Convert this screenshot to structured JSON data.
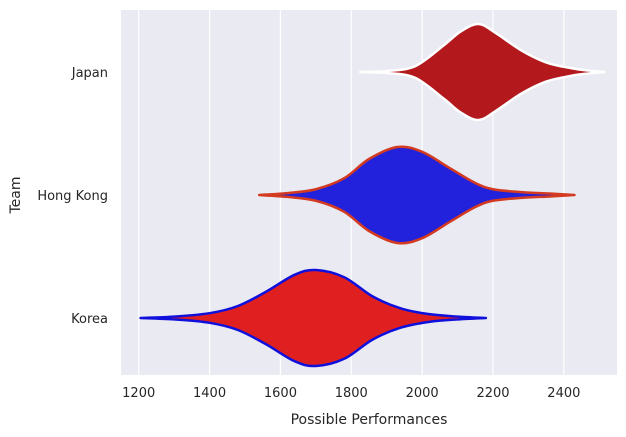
{
  "chart_data": {
    "type": "violin",
    "orientation": "horizontal",
    "xlabel": "Possible Performances",
    "ylabel": "Team",
    "xlim": [
      1150,
      2550
    ],
    "xticks": [
      1200,
      1400,
      1600,
      1800,
      2000,
      2200,
      2400
    ],
    "grid": true,
    "background": "#eaeaf2",
    "grid_color": "#ffffff",
    "categories": [
      "Japan",
      "Hong Kong",
      "Korea"
    ],
    "series": [
      {
        "category": "Japan",
        "fill": "#b3191c",
        "edge": "#ffffff",
        "min": 1825,
        "max": 2515,
        "median": 2160,
        "profile": [
          [
            1825,
            0.0
          ],
          [
            1900,
            0.02
          ],
          [
            1980,
            0.12
          ],
          [
            2060,
            0.55
          ],
          [
            2110,
            0.85
          ],
          [
            2160,
            1.0
          ],
          [
            2210,
            0.8
          ],
          [
            2280,
            0.45
          ],
          [
            2350,
            0.2
          ],
          [
            2420,
            0.08
          ],
          [
            2470,
            0.03
          ],
          [
            2515,
            0.0
          ]
        ]
      },
      {
        "category": "Hong Kong",
        "fill": "#2222dd",
        "edge": "#d33a20",
        "min": 1540,
        "max": 2430,
        "median": 1930,
        "profile": [
          [
            1540,
            0.0
          ],
          [
            1620,
            0.04
          ],
          [
            1700,
            0.12
          ],
          [
            1780,
            0.35
          ],
          [
            1850,
            0.75
          ],
          [
            1930,
            1.0
          ],
          [
            2000,
            0.9
          ],
          [
            2080,
            0.55
          ],
          [
            2150,
            0.25
          ],
          [
            2200,
            0.12
          ],
          [
            2280,
            0.06
          ],
          [
            2360,
            0.03
          ],
          [
            2430,
            0.0
          ]
        ]
      },
      {
        "category": "Korea",
        "fill": "#e02020",
        "edge": "#1010dd",
        "min": 1205,
        "max": 2180,
        "median": 1700,
        "profile": [
          [
            1205,
            0.0
          ],
          [
            1300,
            0.03
          ],
          [
            1400,
            0.1
          ],
          [
            1480,
            0.25
          ],
          [
            1560,
            0.55
          ],
          [
            1640,
            0.9
          ],
          [
            1700,
            1.0
          ],
          [
            1780,
            0.85
          ],
          [
            1860,
            0.45
          ],
          [
            1940,
            0.2
          ],
          [
            2020,
            0.08
          ],
          [
            2100,
            0.03
          ],
          [
            2180,
            0.0
          ]
        ]
      }
    ]
  }
}
